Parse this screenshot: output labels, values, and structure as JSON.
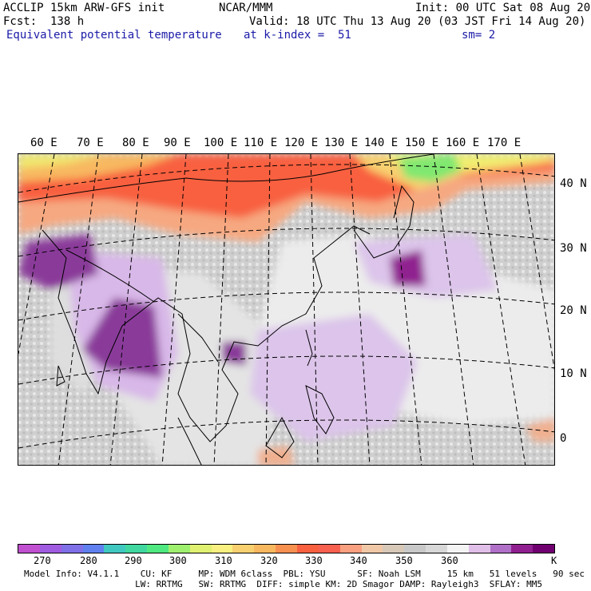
{
  "header": {
    "left_line1": "ACCLIP 15km ARW-GFS init",
    "center_line1": "NCAR/MMM",
    "right_line1": "Init: 00 UTC Sat 08 Aug 20",
    "left_line2": "Fcst:  138 h",
    "right_line2": "Valid: 18 UTC Thu 13 Aug 20 (03 JST Fri 14 Aug 20)",
    "field_name": "Equivalent potential temperature",
    "level": "at k-index =  51",
    "smoothing": "sm= 2"
  },
  "map": {
    "lon_labels": [
      "60 E",
      "70 E",
      "80 E",
      "90 E",
      "100 E",
      "110 E",
      "120 E",
      "130 E",
      "140 E",
      "150 E",
      "160 E",
      "170 E"
    ],
    "lat_labels": [
      "40 N",
      "30 N",
      "20 N",
      "10 N",
      "0"
    ]
  },
  "colorbar": {
    "colors": [
      "#c050d0",
      "#a05ce0",
      "#8070e8",
      "#6080f0",
      "#40c8c0",
      "#40d8a0",
      "#50e880",
      "#a0f070",
      "#e0f070",
      "#f8f080",
      "#f8d070",
      "#f8b860",
      "#f89050",
      "#f86040",
      "#f86050",
      "#f8a080",
      "#f0c8a8",
      "#d8c8b8",
      "#c8c8c8",
      "#d8d8d8",
      "#f4f4f4",
      "#e0c0e8",
      "#b070c8",
      "#902090",
      "#700070"
    ],
    "ticks": [
      "270",
      "280",
      "290",
      "300",
      "310",
      "320",
      "330",
      "340",
      "350",
      "360"
    ],
    "unit": "K"
  },
  "model_info": {
    "line1": "Model Info: V4.1.1    CU: KF     MP: WDM 6class  PBL: YSU      SF: Noah LSM     15 km   51 levels   90 sec",
    "line2": "                     LW: RRTMG   SW: RRTMG  DIFF: simple KM: 2D Smagor DAMP: Rayleigh3  SFLAY: MM5"
  },
  "colors": {
    "warm_band": "#f86040",
    "orange_band": "#f8b860",
    "yellow_band": "#f0f070",
    "green_patch": "#80e870",
    "gray_field": "#c8c8c8",
    "light_field": "#ececec",
    "lavender": "#d8b8e8",
    "purple": "#902090"
  }
}
